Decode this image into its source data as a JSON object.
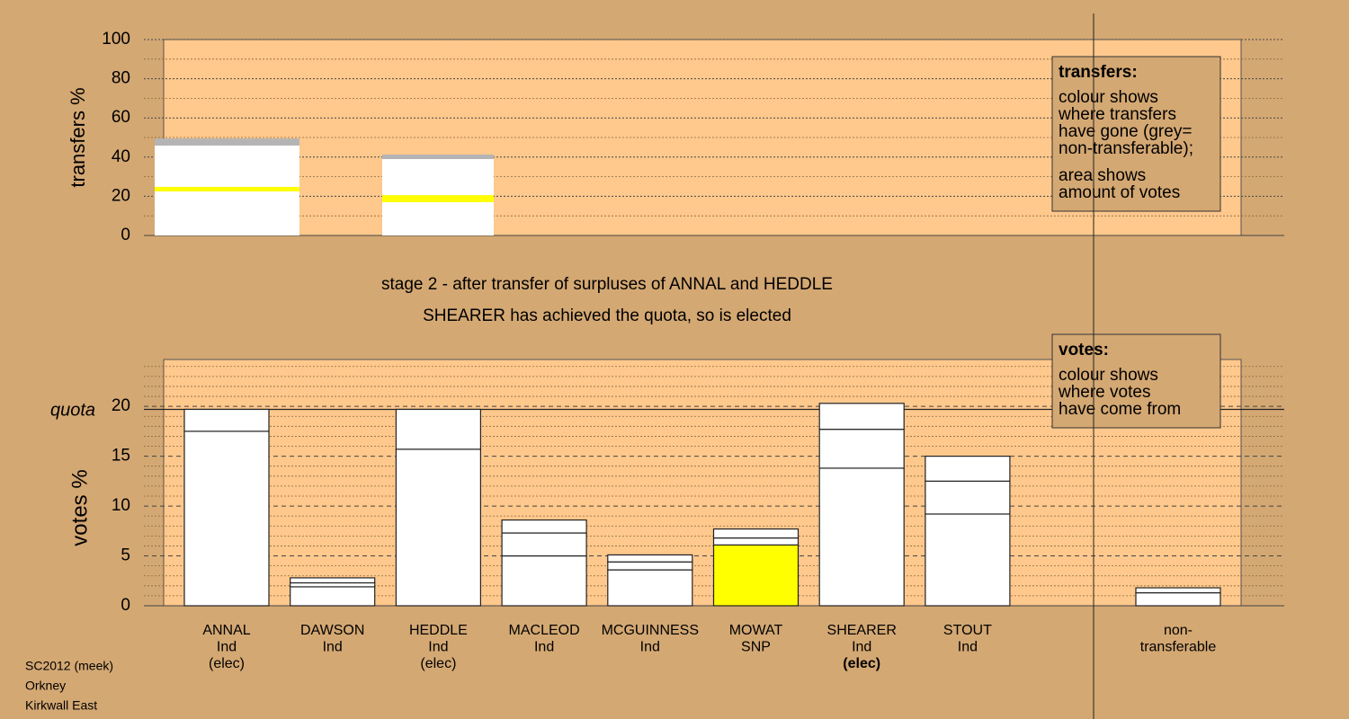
{
  "chart_data": [
    {
      "type": "stacked-bar",
      "ylabel": "transfers %",
      "ylim": [
        0,
        100
      ],
      "yticks": [
        0,
        20,
        40,
        60,
        80,
        100
      ],
      "minor_yticks": [
        10,
        30,
        50,
        70,
        90
      ],
      "stacks": [
        {
          "values": [
            22.5,
            2.3,
            21.1,
            3.6
          ],
          "colors": [
            "#ffffff",
            "#ffff00",
            "#ffffff",
            "#b4b4b4"
          ]
        },
        {
          "values": [
            17.0,
            3.6,
            18.4,
            2.3
          ],
          "colors": [
            "#ffffff",
            "#ffff00",
            "#ffffff",
            "#b4b4b4"
          ]
        }
      ],
      "legend": {
        "title": "transfers:",
        "lines": [
          "colour shows",
          "where transfers",
          "have gone (grey=",
          "non-transferable);"
        ],
        "lines2": [
          "area shows",
          "amount of votes"
        ]
      }
    },
    {
      "type": "stacked-bar",
      "ylabel": "votes %",
      "ylim": [
        0,
        24.7
      ],
      "yticks": [
        0,
        5,
        10,
        15,
        20
      ],
      "minor_yticks": [
        1,
        2,
        3,
        4,
        6,
        7,
        8,
        9,
        11,
        12,
        13,
        14,
        16,
        17,
        18,
        19,
        21,
        22,
        23,
        24
      ],
      "quota": 19.7,
      "quota_label": "quota",
      "categories": [
        {
          "lines": [
            "ANNAL",
            "Ind",
            "(elec)"
          ]
        },
        {
          "lines": [
            "DAWSON",
            "Ind"
          ]
        },
        {
          "lines": [
            "HEDDLE",
            "Ind",
            "(elec)"
          ]
        },
        {
          "lines": [
            "MACLEOD",
            "Ind"
          ]
        },
        {
          "lines": [
            "MCGUINNESS",
            "Ind"
          ]
        },
        {
          "lines": [
            "MOWAT",
            "SNP"
          ]
        },
        {
          "lines": [
            "SHEARER",
            "Ind",
            "(elec)"
          ],
          "bold_last": true
        },
        {
          "lines": [
            "STOUT",
            "Ind"
          ]
        },
        {
          "lines": [
            "non-",
            "transferable"
          ]
        }
      ],
      "stacks": [
        {
          "values": [
            17.5,
            2.2
          ],
          "colors": [
            "#ffffff",
            "#ffffff"
          ]
        },
        {
          "values": [
            1.9,
            0.4,
            0.5
          ],
          "colors": [
            "#ffffff",
            "#ffffff",
            "#ffffff"
          ]
        },
        {
          "values": [
            15.7,
            4.0
          ],
          "colors": [
            "#ffffff",
            "#ffffff"
          ]
        },
        {
          "values": [
            5.0,
            2.3,
            1.3
          ],
          "colors": [
            "#ffffff",
            "#ffffff",
            "#ffffff"
          ]
        },
        {
          "values": [
            3.6,
            0.8,
            0.7
          ],
          "colors": [
            "#ffffff",
            "#ffffff",
            "#ffffff"
          ]
        },
        {
          "values": [
            6.1,
            0.7,
            0.9
          ],
          "colors": [
            "#ffff00",
            "#ffffff",
            "#ffffff"
          ]
        },
        {
          "values": [
            13.8,
            3.9,
            2.6
          ],
          "colors": [
            "#ffffff",
            "#ffffff",
            "#ffffff"
          ]
        },
        {
          "values": [
            9.2,
            3.3,
            2.5
          ],
          "colors": [
            "#ffffff",
            "#ffffff",
            "#ffffff"
          ]
        },
        {
          "values": [
            1.3,
            0.5
          ],
          "colors": [
            "#ffffff",
            "#ffffff"
          ]
        }
      ],
      "legend": {
        "title": "votes:",
        "lines": [
          "colour shows",
          "where votes",
          "have come from"
        ]
      }
    }
  ],
  "title": [
    "stage 2 - after transfer of surpluses of ANNAL and HEDDLE",
    "SHEARER has achieved the quota, so is elected"
  ],
  "footer": [
    "SC2012 (meek)",
    "Orkney",
    "Kirkwall East"
  ]
}
